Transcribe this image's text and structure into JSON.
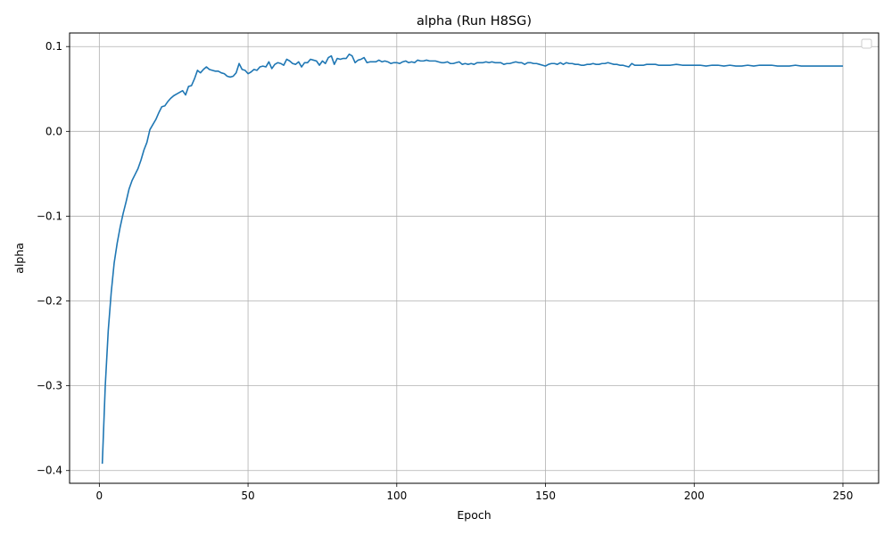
{
  "chart_data": {
    "type": "line",
    "title": "alpha (Run H8SG)",
    "xlabel": "Epoch",
    "ylabel": "alpha",
    "xlim": [
      -10,
      262
    ],
    "ylim": [
      -0.415,
      0.116
    ],
    "x_ticks": [
      0,
      50,
      100,
      150,
      200,
      250
    ],
    "x_tick_labels": [
      "0",
      "50",
      "100",
      "150",
      "200",
      "250"
    ],
    "y_ticks": [
      -0.4,
      -0.3,
      -0.2,
      -0.1,
      0.0,
      0.1
    ],
    "y_tick_labels": [
      "−0.4",
      "−0.3",
      "−0.2",
      "−0.1",
      "0.0",
      "0.1"
    ],
    "grid": true,
    "legend": "top-right (empty)",
    "series": [
      {
        "color": "#1f77b4",
        "points": [
          [
            1,
            -0.392
          ],
          [
            2,
            -0.3
          ],
          [
            3,
            -0.235
          ],
          [
            4,
            -0.19
          ],
          [
            5,
            -0.155
          ],
          [
            6,
            -0.132
          ],
          [
            7,
            -0.113
          ],
          [
            8,
            -0.097
          ],
          [
            9,
            -0.083
          ],
          [
            10,
            -0.068
          ],
          [
            11,
            -0.058
          ],
          [
            12,
            -0.051
          ],
          [
            13,
            -0.044
          ],
          [
            14,
            -0.034
          ],
          [
            15,
            -0.022
          ],
          [
            16,
            -0.013
          ],
          [
            17,
            0.002
          ],
          [
            18,
            0.008
          ],
          [
            19,
            0.014
          ],
          [
            20,
            0.022
          ],
          [
            21,
            0.029
          ],
          [
            22,
            0.03
          ],
          [
            23,
            0.035
          ],
          [
            24,
            0.039
          ],
          [
            25,
            0.042
          ],
          [
            26,
            0.044
          ],
          [
            27,
            0.046
          ],
          [
            28,
            0.048
          ],
          [
            29,
            0.043
          ],
          [
            30,
            0.053
          ],
          [
            31,
            0.054
          ],
          [
            32,
            0.062
          ],
          [
            33,
            0.072
          ],
          [
            34,
            0.069
          ],
          [
            35,
            0.073
          ],
          [
            36,
            0.076
          ],
          [
            37,
            0.073
          ],
          [
            38,
            0.072
          ],
          [
            39,
            0.071
          ],
          [
            40,
            0.071
          ],
          [
            41,
            0.069
          ],
          [
            42,
            0.068
          ],
          [
            43,
            0.065
          ],
          [
            44,
            0.064
          ],
          [
            45,
            0.065
          ],
          [
            46,
            0.069
          ],
          [
            47,
            0.08
          ],
          [
            48,
            0.073
          ],
          [
            49,
            0.072
          ],
          [
            50,
            0.068
          ],
          [
            51,
            0.07
          ],
          [
            52,
            0.073
          ],
          [
            53,
            0.072
          ],
          [
            54,
            0.076
          ],
          [
            55,
            0.077
          ],
          [
            56,
            0.076
          ],
          [
            57,
            0.082
          ],
          [
            58,
            0.074
          ],
          [
            59,
            0.079
          ],
          [
            60,
            0.081
          ],
          [
            61,
            0.08
          ],
          [
            62,
            0.078
          ],
          [
            63,
            0.085
          ],
          [
            64,
            0.083
          ],
          [
            65,
            0.08
          ],
          [
            66,
            0.079
          ],
          [
            67,
            0.082
          ],
          [
            68,
            0.076
          ],
          [
            69,
            0.081
          ],
          [
            70,
            0.081
          ],
          [
            71,
            0.085
          ],
          [
            72,
            0.084
          ],
          [
            73,
            0.083
          ],
          [
            74,
            0.078
          ],
          [
            75,
            0.083
          ],
          [
            76,
            0.08
          ],
          [
            77,
            0.087
          ],
          [
            78,
            0.089
          ],
          [
            79,
            0.079
          ],
          [
            80,
            0.086
          ],
          [
            81,
            0.085
          ],
          [
            82,
            0.086
          ],
          [
            83,
            0.086
          ],
          [
            84,
            0.091
          ],
          [
            85,
            0.089
          ],
          [
            86,
            0.081
          ],
          [
            87,
            0.084
          ],
          [
            88,
            0.085
          ],
          [
            89,
            0.087
          ],
          [
            90,
            0.081
          ],
          [
            91,
            0.082
          ],
          [
            92,
            0.082
          ],
          [
            93,
            0.082
          ],
          [
            94,
            0.084
          ],
          [
            95,
            0.082
          ],
          [
            96,
            0.083
          ],
          [
            97,
            0.082
          ],
          [
            98,
            0.08
          ],
          [
            99,
            0.081
          ],
          [
            100,
            0.081
          ],
          [
            101,
            0.08
          ],
          [
            102,
            0.082
          ],
          [
            103,
            0.083
          ],
          [
            104,
            0.081
          ],
          [
            105,
            0.082
          ],
          [
            106,
            0.081
          ],
          [
            107,
            0.084
          ],
          [
            108,
            0.083
          ],
          [
            109,
            0.083
          ],
          [
            110,
            0.084
          ],
          [
            111,
            0.083
          ],
          [
            112,
            0.083
          ],
          [
            113,
            0.083
          ],
          [
            114,
            0.082
          ],
          [
            115,
            0.081
          ],
          [
            116,
            0.081
          ],
          [
            117,
            0.082
          ],
          [
            118,
            0.08
          ],
          [
            119,
            0.08
          ],
          [
            120,
            0.081
          ],
          [
            121,
            0.082
          ],
          [
            122,
            0.079
          ],
          [
            123,
            0.08
          ],
          [
            124,
            0.079
          ],
          [
            125,
            0.08
          ],
          [
            126,
            0.079
          ],
          [
            127,
            0.081
          ],
          [
            128,
            0.081
          ],
          [
            129,
            0.081
          ],
          [
            130,
            0.082
          ],
          [
            131,
            0.081
          ],
          [
            132,
            0.082
          ],
          [
            133,
            0.081
          ],
          [
            134,
            0.081
          ],
          [
            135,
            0.081
          ],
          [
            136,
            0.079
          ],
          [
            137,
            0.08
          ],
          [
            138,
            0.08
          ],
          [
            139,
            0.081
          ],
          [
            140,
            0.082
          ],
          [
            141,
            0.081
          ],
          [
            142,
            0.081
          ],
          [
            143,
            0.079
          ],
          [
            144,
            0.081
          ],
          [
            145,
            0.081
          ],
          [
            146,
            0.08
          ],
          [
            147,
            0.08
          ],
          [
            148,
            0.079
          ],
          [
            149,
            0.078
          ],
          [
            150,
            0.077
          ],
          [
            151,
            0.079
          ],
          [
            152,
            0.08
          ],
          [
            153,
            0.08
          ],
          [
            154,
            0.079
          ],
          [
            155,
            0.081
          ],
          [
            156,
            0.079
          ],
          [
            157,
            0.081
          ],
          [
            158,
            0.08
          ],
          [
            159,
            0.08
          ],
          [
            160,
            0.079
          ],
          [
            161,
            0.079
          ],
          [
            162,
            0.078
          ],
          [
            163,
            0.078
          ],
          [
            164,
            0.079
          ],
          [
            165,
            0.079
          ],
          [
            166,
            0.08
          ],
          [
            167,
            0.079
          ],
          [
            168,
            0.079
          ],
          [
            169,
            0.08
          ],
          [
            170,
            0.08
          ],
          [
            171,
            0.081
          ],
          [
            172,
            0.08
          ],
          [
            173,
            0.079
          ],
          [
            174,
            0.079
          ],
          [
            175,
            0.078
          ],
          [
            176,
            0.078
          ],
          [
            177,
            0.077
          ],
          [
            178,
            0.076
          ],
          [
            179,
            0.08
          ],
          [
            180,
            0.078
          ],
          [
            181,
            0.078
          ],
          [
            182,
            0.078
          ],
          [
            183,
            0.078
          ],
          [
            184,
            0.079
          ],
          [
            185,
            0.079
          ],
          [
            186,
            0.079
          ],
          [
            187,
            0.079
          ],
          [
            188,
            0.078
          ],
          [
            189,
            0.078
          ],
          [
            190,
            0.078
          ],
          [
            192,
            0.078
          ],
          [
            194,
            0.079
          ],
          [
            196,
            0.078
          ],
          [
            198,
            0.078
          ],
          [
            200,
            0.078
          ],
          [
            202,
            0.078
          ],
          [
            204,
            0.077
          ],
          [
            206,
            0.078
          ],
          [
            208,
            0.078
          ],
          [
            210,
            0.077
          ],
          [
            212,
            0.078
          ],
          [
            214,
            0.077
          ],
          [
            216,
            0.077
          ],
          [
            218,
            0.078
          ],
          [
            220,
            0.077
          ],
          [
            222,
            0.078
          ],
          [
            224,
            0.078
          ],
          [
            226,
            0.078
          ],
          [
            228,
            0.077
          ],
          [
            230,
            0.077
          ],
          [
            232,
            0.077
          ],
          [
            234,
            0.078
          ],
          [
            236,
            0.077
          ],
          [
            238,
            0.077
          ],
          [
            240,
            0.077
          ],
          [
            242,
            0.077
          ],
          [
            244,
            0.077
          ],
          [
            246,
            0.077
          ],
          [
            248,
            0.077
          ],
          [
            250,
            0.077
          ]
        ]
      }
    ]
  }
}
